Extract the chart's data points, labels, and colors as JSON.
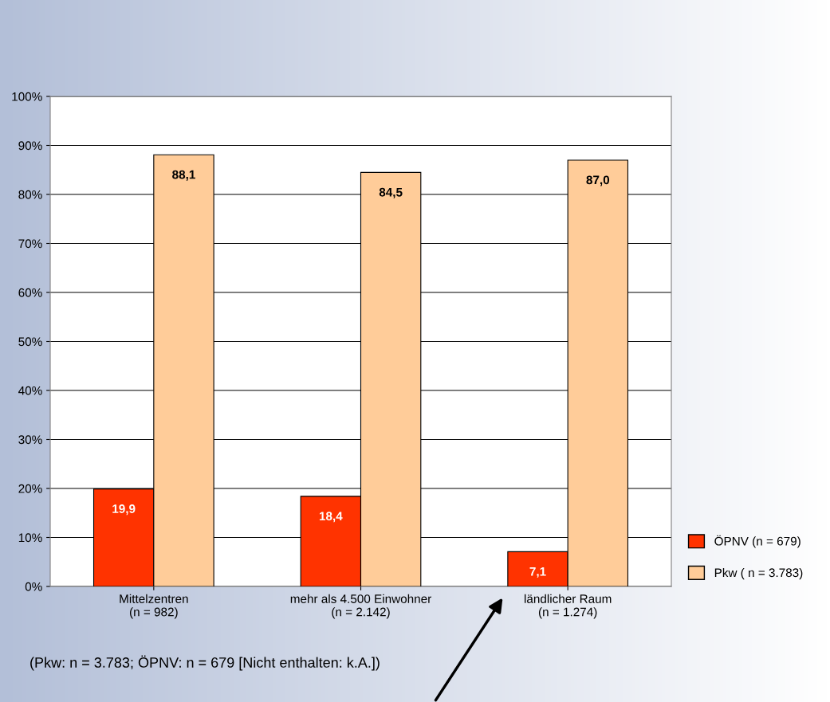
{
  "chart_data": {
    "type": "bar",
    "categories": [
      "Mittelzentren\n(n = 982)",
      "mehr als 4.500 Einwohner\n(n = 2.142)",
      "ländlicher Raum\n(n = 1.274)"
    ],
    "series": [
      {
        "name": "ÖPNV (n = 679)",
        "color": "#ff3300",
        "values": [
          19.9,
          18.4,
          7.1
        ],
        "value_labels": [
          "19,9",
          "18,4",
          "7,1"
        ]
      },
      {
        "name": "Pkw ( n = 3.783)",
        "color": "#ffcc99",
        "values": [
          88.1,
          84.5,
          87.0
        ],
        "value_labels": [
          "88,1",
          "84,5",
          "87,0"
        ]
      }
    ],
    "ylim": [
      0,
      100
    ],
    "yticks": [
      {
        "value": 0,
        "label": "0%"
      },
      {
        "value": 10,
        "label": "10%"
      },
      {
        "value": 20,
        "label": "20%"
      },
      {
        "value": 30,
        "label": "30%"
      },
      {
        "value": 40,
        "label": "40%"
      },
      {
        "value": 50,
        "label": "50%"
      },
      {
        "value": 60,
        "label": "60%"
      },
      {
        "value": 70,
        "label": "70%"
      },
      {
        "value": 80,
        "label": "80%"
      },
      {
        "value": 90,
        "label": "90%"
      },
      {
        "value": 100,
        "label": "100%"
      }
    ],
    "grid": "y",
    "legend": "right",
    "annotations": [
      "(Pkw: n = 3.783; ÖPNV: n = 679 [Nicht enthalten: k.A.])"
    ]
  }
}
